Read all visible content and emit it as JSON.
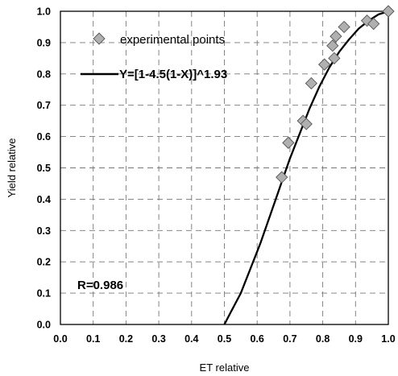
{
  "chart_data": {
    "type": "scatter",
    "xlabel": "ET relative",
    "ylabel": "Yield relative",
    "xlim": [
      0.0,
      1.0
    ],
    "ylim": [
      0.0,
      1.0
    ],
    "x_ticks": [
      "0.0",
      "0.1",
      "0.2",
      "0.3",
      "0.4",
      "0.5",
      "0.6",
      "0.7",
      "0.8",
      "0.9",
      "1.0"
    ],
    "y_ticks": [
      "0.0",
      "0.1",
      "0.2",
      "0.3",
      "0.4",
      "0.5",
      "0.6",
      "0.7",
      "0.8",
      "0.9",
      "1.0"
    ],
    "grid": true,
    "legend_position": "top-left",
    "series": [
      {
        "name": "experimental points",
        "kind": "points",
        "marker": "diamond",
        "color": "#b0b0b0",
        "x": [
          0.675,
          0.695,
          0.74,
          0.75,
          0.765,
          0.805,
          0.83,
          0.835,
          0.84,
          0.865,
          0.935,
          0.955,
          1.0
        ],
        "y": [
          0.47,
          0.58,
          0.65,
          0.64,
          0.77,
          0.83,
          0.89,
          0.85,
          0.92,
          0.95,
          0.97,
          0.96,
          1.0
        ]
      },
      {
        "name": "Y=[1-4.5(1-X)]^1.93",
        "kind": "line",
        "color": "#000000",
        "x": [
          0.5,
          0.52,
          0.55,
          0.58,
          0.61,
          0.64,
          0.67,
          0.7,
          0.73,
          0.76,
          0.79,
          0.82,
          0.85,
          0.88,
          0.91,
          0.94,
          0.97,
          1.0
        ],
        "y": [
          0.0,
          0.04,
          0.1,
          0.18,
          0.26,
          0.35,
          0.44,
          0.53,
          0.61,
          0.69,
          0.76,
          0.82,
          0.87,
          0.91,
          0.945,
          0.97,
          0.99,
          1.0
        ]
      }
    ],
    "annotation": "R=0.986"
  }
}
